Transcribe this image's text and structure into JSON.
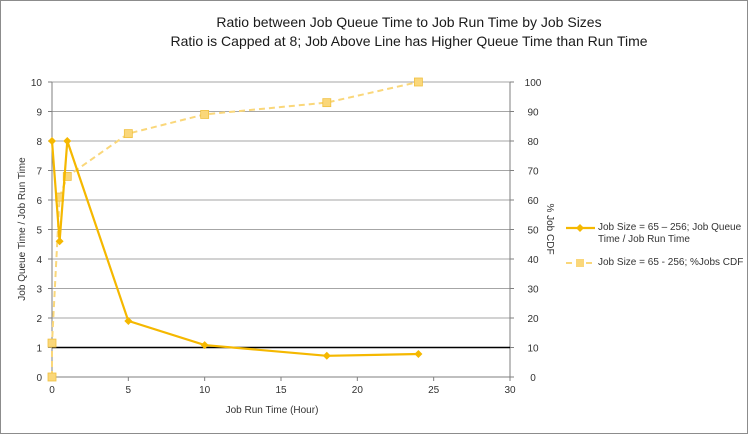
{
  "chart_data": {
    "type": "line",
    "title": "Ratio between Job Queue Time to Job Run Time by Job Sizes",
    "subtitle": "Ratio is Capped at 8; Job Above Line has Higher Queue Time than Run Time",
    "xlabel": "Job Run Time (Hour)",
    "ylabel": "Job Queue Time / Job Run Time",
    "y2label": "% Job CDF",
    "xlim": [
      0,
      30
    ],
    "ylim": [
      0,
      10
    ],
    "y2lim": [
      0,
      100
    ],
    "x_ticks": [
      "0",
      "5",
      "10",
      "15",
      "20",
      "25",
      "30"
    ],
    "y_ticks": [
      "0",
      "1",
      "2",
      "3",
      "4",
      "5",
      "6",
      "7",
      "8",
      "9",
      "10"
    ],
    "y2_ticks": [
      "0",
      "10",
      "20",
      "30",
      "40",
      "50",
      "60",
      "70",
      "80",
      "90",
      "100"
    ],
    "grid": true,
    "legend_position": "right",
    "reference_line": {
      "y": 1
    },
    "series": [
      {
        "name": "Job Size =  65 – 256; Job Queue Time / Job Run Time",
        "axis": "left",
        "style": "solid",
        "marker": "diamond",
        "color": "#f5b800",
        "x": [
          0,
          0.5,
          1,
          5,
          10,
          18,
          24
        ],
        "y": [
          8,
          4.6,
          8,
          1.9,
          1.08,
          0.72,
          0.78
        ]
      },
      {
        "name": "Job Size =  65 - 256; %Jobs CDF",
        "axis": "right",
        "style": "dashed",
        "marker": "square",
        "color": "#fad77a",
        "x": [
          0,
          0,
          0.5,
          1,
          5,
          10,
          18,
          24
        ],
        "y": [
          0,
          11.5,
          61,
          68,
          82.5,
          89,
          93,
          100
        ]
      }
    ]
  }
}
